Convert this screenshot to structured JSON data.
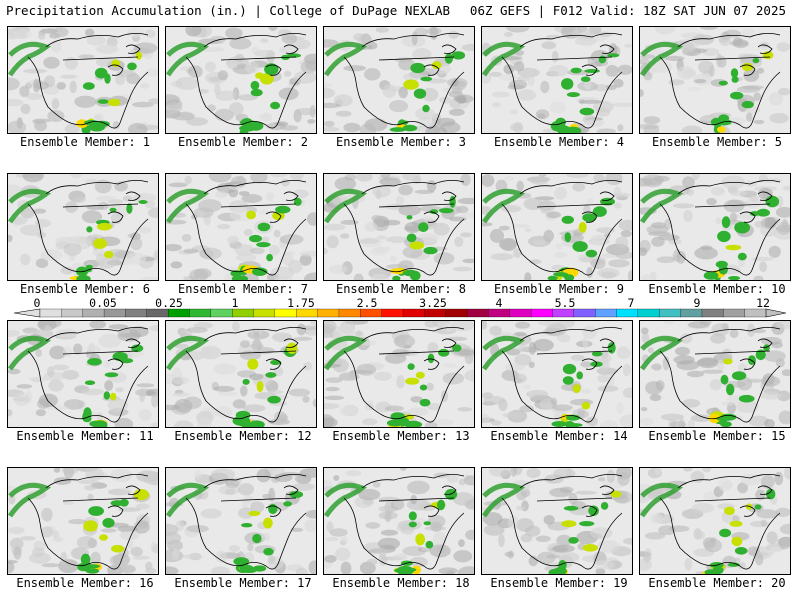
{
  "header": {
    "left": "Precipitation Accumulation (in.) | College of DuPage NEXLAB",
    "right": "06Z GEFS | F012 Valid: 18Z SAT JUN 07 2025"
  },
  "panel_label_prefix": "Ensemble Member: ",
  "members": [
    {
      "label": "Ensemble Member: 1"
    },
    {
      "label": "Ensemble Member: 2"
    },
    {
      "label": "Ensemble Member: 3"
    },
    {
      "label": "Ensemble Member: 4"
    },
    {
      "label": "Ensemble Member: 5"
    },
    {
      "label": "Ensemble Member: 6"
    },
    {
      "label": "Ensemble Member: 7"
    },
    {
      "label": "Ensemble Member: 8"
    },
    {
      "label": "Ensemble Member: 9"
    },
    {
      "label": "Ensemble Member: 10"
    },
    {
      "label": "Ensemble Member: 11"
    },
    {
      "label": "Ensemble Member: 12"
    },
    {
      "label": "Ensemble Member: 13"
    },
    {
      "label": "Ensemble Member: 14"
    },
    {
      "label": "Ensemble Member: 15"
    },
    {
      "label": "Ensemble Member: 16"
    },
    {
      "label": "Ensemble Member: 17"
    },
    {
      "label": "Ensemble Member: 18"
    },
    {
      "label": "Ensemble Member: 19"
    },
    {
      "label": "Ensemble Member: 20"
    }
  ],
  "colorbar": {
    "tick_labels": [
      "0",
      "0.05",
      "0.25",
      "1",
      "1.75",
      "2.5",
      "3.25",
      "4",
      "5.5",
      "7",
      "9",
      "12"
    ],
    "colors": [
      "#e0e0e0",
      "#c8c8c8",
      "#b0b0b0",
      "#989898",
      "#808080",
      "#686868",
      "#00a000",
      "#30b830",
      "#60d060",
      "#90d000",
      "#c8e000",
      "#ffff00",
      "#ffd800",
      "#ffb000",
      "#ff8800",
      "#ff5000",
      "#ff1000",
      "#e00000",
      "#c00000",
      "#a00000",
      "#a00040",
      "#c00080",
      "#e000c0",
      "#ff00ff",
      "#c040ff",
      "#8060ff",
      "#60a0ff",
      "#00e0ff",
      "#00d0d0",
      "#40c0c0",
      "#60a0a0",
      "#808080",
      "#a0a0a0",
      "#c0c0c0"
    ]
  }
}
